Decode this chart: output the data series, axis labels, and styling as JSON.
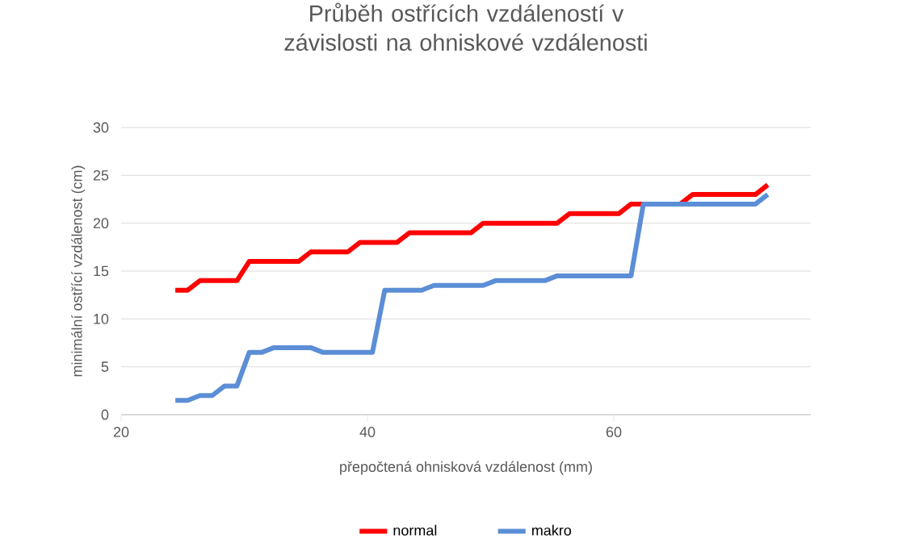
{
  "chart_data": {
    "type": "line",
    "title": "Průběh ostřících vzdáleností v závislosti na ohniskové vzdálenosti",
    "xlabel": "přepočtená ohnisková vzdálenost (mm)",
    "ylabel": "minimální ostřící vzdálenost (cm)",
    "xlim": [
      20,
      76
    ],
    "xticks": [
      20,
      40,
      60
    ],
    "ylim": [
      0,
      30
    ],
    "yticks": [
      0,
      5,
      10,
      15,
      20,
      25,
      30
    ],
    "grid": "y",
    "legend": "bottom",
    "marker": "none",
    "line_style": "solid",
    "series": [
      {
        "name": "normal",
        "color": "#ff0000",
        "x": [
          24.4,
          25.4,
          26.4,
          29.4,
          30.4,
          34.4,
          35.4,
          38.4,
          39.4,
          42.4,
          43.4,
          48.4,
          49.4,
          55.4,
          56.4,
          60.4,
          61.4,
          65.4,
          66.4,
          71.5,
          72.5
        ],
        "values": [
          13,
          13,
          14,
          14,
          16,
          16,
          17,
          17,
          18,
          18,
          19,
          19,
          20,
          20,
          21,
          21,
          22,
          22,
          23,
          23,
          24
        ]
      },
      {
        "name": "makro",
        "color": "#5b8ed6",
        "x": [
          24.4,
          25.4,
          26.4,
          27.4,
          28.4,
          29.4,
          30.4,
          31.4,
          32.4,
          35.4,
          36.4,
          40.4,
          41.4,
          44.4,
          45.4,
          49.4,
          50.4,
          54.4,
          55.4,
          61.4,
          62.4,
          71.5,
          72.5
        ],
        "values": [
          1.5,
          1.5,
          2,
          2,
          3,
          3,
          6.5,
          6.5,
          7,
          7,
          6.5,
          6.5,
          13,
          13,
          13.5,
          13.5,
          14,
          14,
          14.5,
          14.5,
          22,
          22,
          23
        ]
      }
    ]
  }
}
